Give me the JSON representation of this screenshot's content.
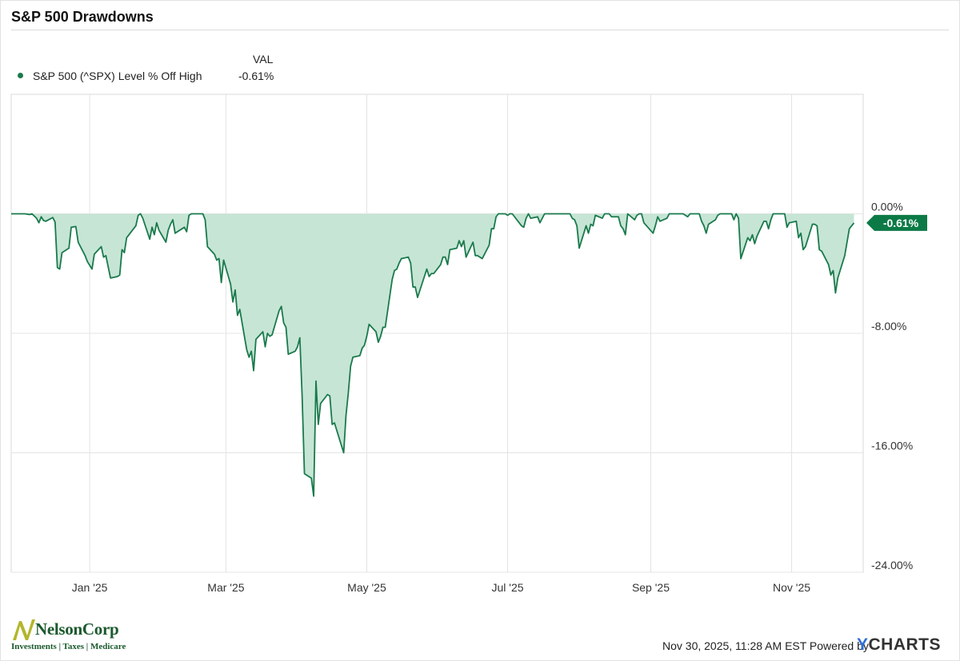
{
  "title": "S&P 500 Drawdowns",
  "legend": {
    "column_header": "VAL",
    "series_label": "S&P 500 (^SPX) Level % Off High",
    "series_value": "-0.61%"
  },
  "footer": {
    "timestamp": "Nov 30, 2025, 11:28 AM EST Powered by",
    "brand": "YCHARTS",
    "logo_name": "NelsonCorp",
    "logo_tagline": "Investments | Taxes | Medicare"
  },
  "colors": {
    "line": "#1a7a4c",
    "fill": "#c3e4d3",
    "badge": "#0c7a46",
    "grid": "#e4e4e4"
  },
  "chart_data": {
    "type": "area",
    "title": "S&P 500 Drawdowns",
    "xlabel": "",
    "ylabel": "",
    "ylim": [
      -24,
      8
    ],
    "grid": true,
    "yticks": [
      0,
      -8,
      -16,
      -24
    ],
    "ytick_labels": [
      "0.00%",
      "-8.00%",
      "-16.00%",
      "-24.00%"
    ],
    "xticks": [
      "2025-01-01",
      "2025-03-01",
      "2025-05-01",
      "2025-07-01",
      "2025-09-01",
      "2025-11-01"
    ],
    "xtick_labels": [
      "Jan '25",
      "Mar '25",
      "May '25",
      "Jul '25",
      "Sep '25",
      "Nov '25"
    ],
    "x_range": [
      "2024-11-28",
      "2025-12-02"
    ],
    "last_value_label": "-0.61%",
    "series": [
      {
        "name": "S&P 500 (^SPX) Level % Off High",
        "points": [
          [
            "2024-11-28",
            0.0
          ],
          [
            "2024-12-01",
            0.0
          ],
          [
            "2024-12-04",
            0.0
          ],
          [
            "2024-12-06",
            -0.05
          ],
          [
            "2024-12-07",
            0.0
          ],
          [
            "2024-12-09",
            -0.3
          ],
          [
            "2024-12-10",
            -0.6
          ],
          [
            "2024-12-11",
            -0.2
          ],
          [
            "2024-12-12",
            -0.45
          ],
          [
            "2024-12-13",
            -0.5
          ],
          [
            "2024-12-16",
            -0.25
          ],
          [
            "2024-12-17",
            -0.55
          ],
          [
            "2024-12-18",
            -3.6
          ],
          [
            "2024-12-19",
            -3.7
          ],
          [
            "2024-12-20",
            -2.6
          ],
          [
            "2024-12-23",
            -2.3
          ],
          [
            "2024-12-24",
            -0.9
          ],
          [
            "2024-12-26",
            -0.85
          ],
          [
            "2024-12-27",
            -1.9
          ],
          [
            "2024-12-30",
            -2.8
          ],
          [
            "2024-12-31",
            -3.2
          ],
          [
            "2025-01-02",
            -3.7
          ],
          [
            "2025-01-03",
            -2.7
          ],
          [
            "2025-01-06",
            -2.2
          ],
          [
            "2025-01-07",
            -2.9
          ],
          [
            "2025-01-08",
            -2.8
          ],
          [
            "2025-01-10",
            -4.3
          ],
          [
            "2025-01-13",
            -4.2
          ],
          [
            "2025-01-14",
            -4.1
          ],
          [
            "2025-01-15",
            -2.4
          ],
          [
            "2025-01-16",
            -2.6
          ],
          [
            "2025-01-17",
            -1.6
          ],
          [
            "2025-01-21",
            -0.8
          ],
          [
            "2025-01-22",
            -0.1
          ],
          [
            "2025-01-23",
            0.0
          ],
          [
            "2025-01-24",
            -0.3
          ],
          [
            "2025-01-27",
            -1.7
          ],
          [
            "2025-01-28",
            -0.9
          ],
          [
            "2025-01-29",
            -1.4
          ],
          [
            "2025-01-30",
            -0.6
          ],
          [
            "2025-01-31",
            -1.1
          ],
          [
            "2025-02-03",
            -1.9
          ],
          [
            "2025-02-04",
            -1.1
          ],
          [
            "2025-02-05",
            -0.7
          ],
          [
            "2025-02-06",
            -0.4
          ],
          [
            "2025-02-07",
            -1.3
          ],
          [
            "2025-02-10",
            -1.0
          ],
          [
            "2025-02-11",
            -0.9
          ],
          [
            "2025-02-12",
            -1.2
          ],
          [
            "2025-02-13",
            -0.1
          ],
          [
            "2025-02-14",
            0.0
          ],
          [
            "2025-02-18",
            0.0
          ],
          [
            "2025-02-19",
            0.0
          ],
          [
            "2025-02-20",
            -0.4
          ],
          [
            "2025-02-21",
            -2.2
          ],
          [
            "2025-02-24",
            -2.7
          ],
          [
            "2025-02-25",
            -3.1
          ],
          [
            "2025-02-26",
            -3.0
          ],
          [
            "2025-02-27",
            -4.6
          ],
          [
            "2025-02-28",
            -3.1
          ],
          [
            "2025-03-03",
            -4.7
          ],
          [
            "2025-03-04",
            -5.9
          ],
          [
            "2025-03-05",
            -5.1
          ],
          [
            "2025-03-06",
            -6.8
          ],
          [
            "2025-03-07",
            -6.4
          ],
          [
            "2025-03-10",
            -9.1
          ],
          [
            "2025-03-11",
            -9.6
          ],
          [
            "2025-03-12",
            -9.2
          ],
          [
            "2025-03-13",
            -10.5
          ],
          [
            "2025-03-14",
            -8.4
          ],
          [
            "2025-03-17",
            -7.9
          ],
          [
            "2025-03-18",
            -8.9
          ],
          [
            "2025-03-19",
            -8.0
          ],
          [
            "2025-03-20",
            -8.2
          ],
          [
            "2025-03-21",
            -8.1
          ],
          [
            "2025-03-24",
            -6.5
          ],
          [
            "2025-03-25",
            -6.2
          ],
          [
            "2025-03-26",
            -7.3
          ],
          [
            "2025-03-27",
            -7.6
          ],
          [
            "2025-03-28",
            -9.4
          ],
          [
            "2025-03-31",
            -9.2
          ],
          [
            "2025-04-01",
            -8.9
          ],
          [
            "2025-04-02",
            -8.3
          ],
          [
            "2025-04-03",
            -12.2
          ],
          [
            "2025-04-04",
            -17.4
          ],
          [
            "2025-04-07",
            -17.7
          ],
          [
            "2025-04-08",
            -18.9
          ],
          [
            "2025-04-09",
            -11.2
          ],
          [
            "2025-04-10",
            -14.1
          ],
          [
            "2025-04-11",
            -12.7
          ],
          [
            "2025-04-14",
            -12.1
          ],
          [
            "2025-04-15",
            -12.2
          ],
          [
            "2025-04-16",
            -14.1
          ],
          [
            "2025-04-17",
            -14.0
          ],
          [
            "2025-04-21",
            -16.0
          ],
          [
            "2025-04-22",
            -13.5
          ],
          [
            "2025-04-23",
            -12.0
          ],
          [
            "2025-04-24",
            -10.2
          ],
          [
            "2025-04-25",
            -9.6
          ],
          [
            "2025-04-28",
            -9.5
          ],
          [
            "2025-04-29",
            -9.0
          ],
          [
            "2025-04-30",
            -8.8
          ],
          [
            "2025-05-01",
            -8.2
          ],
          [
            "2025-05-02",
            -7.4
          ],
          [
            "2025-05-05",
            -7.9
          ],
          [
            "2025-05-06",
            -8.6
          ],
          [
            "2025-05-07",
            -8.2
          ],
          [
            "2025-05-08",
            -7.6
          ],
          [
            "2025-05-09",
            -7.6
          ],
          [
            "2025-05-12",
            -4.4
          ],
          [
            "2025-05-13",
            -3.8
          ],
          [
            "2025-05-14",
            -3.7
          ],
          [
            "2025-05-15",
            -3.3
          ],
          [
            "2025-05-16",
            -3.0
          ],
          [
            "2025-05-19",
            -2.9
          ],
          [
            "2025-05-20",
            -3.3
          ],
          [
            "2025-05-21",
            -4.9
          ],
          [
            "2025-05-22",
            -4.9
          ],
          [
            "2025-05-23",
            -5.6
          ],
          [
            "2025-05-27",
            -3.7
          ],
          [
            "2025-05-28",
            -4.2
          ],
          [
            "2025-05-29",
            -4.0
          ],
          [
            "2025-05-30",
            -4.0
          ],
          [
            "2025-06-02",
            -3.4
          ],
          [
            "2025-06-03",
            -2.9
          ],
          [
            "2025-06-04",
            -2.9
          ],
          [
            "2025-06-05",
            -3.4
          ],
          [
            "2025-06-06",
            -2.4
          ],
          [
            "2025-06-09",
            -2.3
          ],
          [
            "2025-06-10",
            -1.8
          ],
          [
            "2025-06-11",
            -2.2
          ],
          [
            "2025-06-12",
            -1.8
          ],
          [
            "2025-06-13",
            -2.9
          ],
          [
            "2025-06-16",
            -1.9
          ],
          [
            "2025-06-17",
            -2.8
          ],
          [
            "2025-06-18",
            -2.8
          ],
          [
            "2025-06-20",
            -3.0
          ],
          [
            "2025-06-23",
            -2.1
          ],
          [
            "2025-06-24",
            -1.0
          ],
          [
            "2025-06-25",
            -1.0
          ],
          [
            "2025-06-26",
            -0.2
          ],
          [
            "2025-06-27",
            0.0
          ],
          [
            "2025-06-30",
            0.0
          ],
          [
            "2025-07-01",
            -0.1
          ],
          [
            "2025-07-02",
            0.0
          ],
          [
            "2025-07-03",
            0.0
          ],
          [
            "2025-07-07",
            -0.8
          ],
          [
            "2025-07-08",
            -0.9
          ],
          [
            "2025-07-09",
            -0.3
          ],
          [
            "2025-07-10",
            0.0
          ],
          [
            "2025-07-11",
            -0.3
          ],
          [
            "2025-07-14",
            -0.2
          ],
          [
            "2025-07-15",
            -0.6
          ],
          [
            "2025-07-16",
            -0.3
          ],
          [
            "2025-07-17",
            0.0
          ],
          [
            "2025-07-18",
            0.0
          ],
          [
            "2025-07-21",
            0.0
          ],
          [
            "2025-07-22",
            0.0
          ],
          [
            "2025-07-23",
            0.0
          ],
          [
            "2025-07-24",
            0.0
          ],
          [
            "2025-07-25",
            0.0
          ],
          [
            "2025-07-28",
            0.0
          ],
          [
            "2025-07-29",
            -0.3
          ],
          [
            "2025-07-30",
            -0.4
          ],
          [
            "2025-07-31",
            -0.8
          ],
          [
            "2025-08-01",
            -2.3
          ],
          [
            "2025-08-04",
            -0.8
          ],
          [
            "2025-08-05",
            -1.3
          ],
          [
            "2025-08-06",
            -0.7
          ],
          [
            "2025-08-07",
            -0.8
          ],
          [
            "2025-08-08",
            -0.1
          ],
          [
            "2025-08-11",
            -0.3
          ],
          [
            "2025-08-12",
            0.0
          ],
          [
            "2025-08-13",
            0.0
          ],
          [
            "2025-08-14",
            0.0
          ],
          [
            "2025-08-15",
            -0.2
          ],
          [
            "2025-08-18",
            -0.2
          ],
          [
            "2025-08-19",
            -0.8
          ],
          [
            "2025-08-20",
            -1.0
          ],
          [
            "2025-08-21",
            -1.4
          ],
          [
            "2025-08-22",
            0.0
          ],
          [
            "2025-08-25",
            -0.4
          ],
          [
            "2025-08-26",
            -0.1
          ],
          [
            "2025-08-27",
            0.0
          ],
          [
            "2025-08-28",
            0.0
          ],
          [
            "2025-08-29",
            -0.6
          ],
          [
            "2025-09-02",
            -1.3
          ],
          [
            "2025-09-03",
            -0.8
          ],
          [
            "2025-09-04",
            -0.2
          ],
          [
            "2025-09-05",
            -0.5
          ],
          [
            "2025-09-08",
            -0.3
          ],
          [
            "2025-09-09",
            0.0
          ],
          [
            "2025-09-10",
            0.0
          ],
          [
            "2025-09-11",
            0.0
          ],
          [
            "2025-09-12",
            0.0
          ],
          [
            "2025-09-15",
            0.0
          ],
          [
            "2025-09-16",
            -0.1
          ],
          [
            "2025-09-17",
            -0.2
          ],
          [
            "2025-09-18",
            0.0
          ],
          [
            "2025-09-19",
            0.0
          ],
          [
            "2025-09-22",
            0.0
          ],
          [
            "2025-09-23",
            -0.5
          ],
          [
            "2025-09-24",
            -0.8
          ],
          [
            "2025-09-25",
            -1.3
          ],
          [
            "2025-09-26",
            -0.7
          ],
          [
            "2025-09-29",
            -0.4
          ],
          [
            "2025-09-30",
            -0.1
          ],
          [
            "2025-10-01",
            0.0
          ],
          [
            "2025-10-02",
            0.0
          ],
          [
            "2025-10-03",
            0.0
          ],
          [
            "2025-10-06",
            0.0
          ],
          [
            "2025-10-07",
            -0.4
          ],
          [
            "2025-10-08",
            0.0
          ],
          [
            "2025-10-09",
            -0.3
          ],
          [
            "2025-10-10",
            -3.0
          ],
          [
            "2025-10-13",
            -1.6
          ],
          [
            "2025-10-14",
            -1.8
          ],
          [
            "2025-10-15",
            -1.4
          ],
          [
            "2025-10-16",
            -2.0
          ],
          [
            "2025-10-17",
            -1.5
          ],
          [
            "2025-10-20",
            -0.5
          ],
          [
            "2025-10-21",
            -0.5
          ],
          [
            "2025-10-22",
            -1.0
          ],
          [
            "2025-10-23",
            -0.4
          ],
          [
            "2025-10-24",
            0.0
          ],
          [
            "2025-10-27",
            0.0
          ],
          [
            "2025-10-28",
            0.0
          ],
          [
            "2025-10-29",
            0.0
          ],
          [
            "2025-10-30",
            -0.9
          ],
          [
            "2025-10-31",
            -0.6
          ],
          [
            "2025-11-03",
            -0.5
          ],
          [
            "2025-11-04",
            -1.6
          ],
          [
            "2025-11-05",
            -1.3
          ],
          [
            "2025-11-06",
            -2.4
          ],
          [
            "2025-11-07",
            -2.2
          ],
          [
            "2025-11-10",
            -0.7
          ],
          [
            "2025-11-11",
            -0.7
          ],
          [
            "2025-11-12",
            -0.8
          ],
          [
            "2025-11-13",
            -2.4
          ],
          [
            "2025-11-14",
            -2.5
          ],
          [
            "2025-11-17",
            -3.4
          ],
          [
            "2025-11-18",
            -4.1
          ],
          [
            "2025-11-19",
            -3.8
          ],
          [
            "2025-11-20",
            -5.3
          ],
          [
            "2025-11-21",
            -4.3
          ],
          [
            "2025-11-24",
            -2.8
          ],
          [
            "2025-11-25",
            -1.9
          ],
          [
            "2025-11-26",
            -1.0
          ],
          [
            "2025-11-28",
            -0.61
          ]
        ]
      }
    ]
  }
}
